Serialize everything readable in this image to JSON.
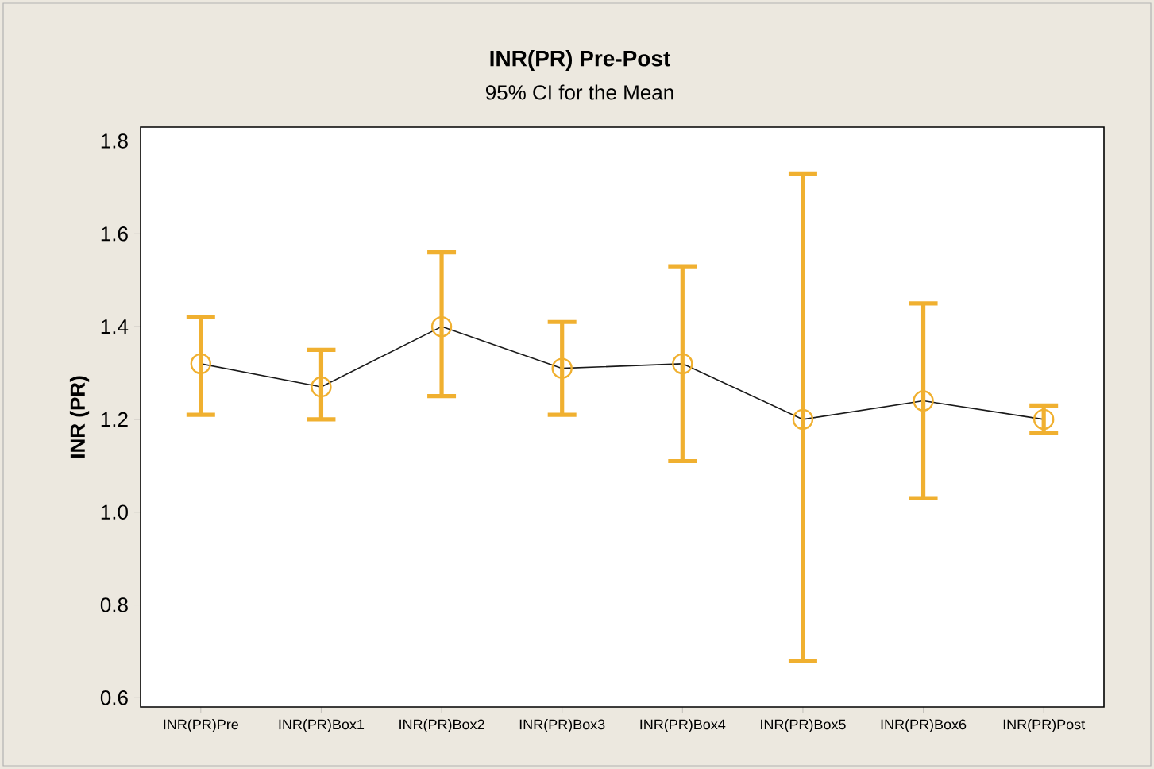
{
  "chart_data": {
    "type": "line",
    "title": "INR(PR) Pre-Post",
    "subtitle": "95% CI for the Mean",
    "ylabel": "INR (PR)",
    "categories": [
      "INR(PR)Pre",
      "INR(PR)Box1",
      "INR(PR)Box2",
      "INR(PR)Box3",
      "INR(PR)Box4",
      "INR(PR)Box5",
      "INR(PR)Box6",
      "INR(PR)Post"
    ],
    "series": [
      {
        "color": "#1a1a1a",
        "values": [
          1.32,
          1.27,
          1.4,
          1.31,
          1.32,
          1.2,
          1.24,
          1.2
        ]
      },
      {
        "type": "scatter",
        "color": "#f0b030",
        "marker": "circle",
        "values": [
          1.32,
          1.27,
          1.4,
          1.31,
          1.32,
          1.2,
          1.24,
          1.2
        ],
        "errors": [
          [
            1.21,
            1.42
          ],
          [
            1.2,
            1.35
          ],
          [
            1.25,
            1.56
          ],
          [
            1.21,
            1.41
          ],
          [
            1.11,
            1.53
          ],
          [
            0.68,
            1.73
          ],
          [
            1.03,
            1.45
          ],
          [
            1.17,
            1.23
          ]
        ]
      }
    ],
    "ylim": [
      0.58,
      1.83
    ],
    "yticks": [
      0.6,
      0.8,
      {
        "value": 1.0,
        "label": "1.0"
      },
      1.2,
      1.4,
      1.6,
      1.8
    ]
  }
}
